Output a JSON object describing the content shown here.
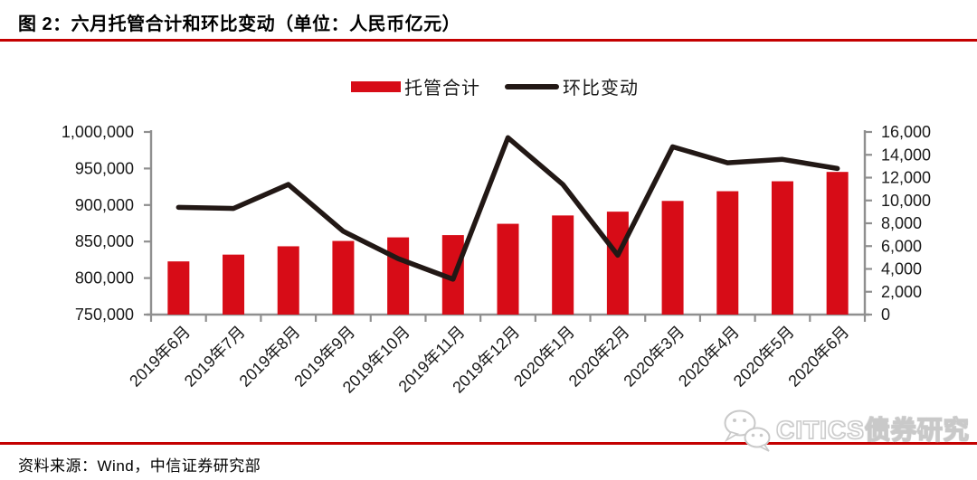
{
  "header": {
    "title": "图 2：六月托管合计和环比变动（单位：人民币亿元）"
  },
  "colors": {
    "bar_red": "#d70c17",
    "line_black": "#221815",
    "rule_red": "#c40000",
    "axis_gray": "#8f8f8f",
    "label_black": "#1a1a1a"
  },
  "chart_data": {
    "type": "bar+line combo",
    "title": "六月托管合计和环比变动",
    "unit": "人民币亿元",
    "grid": false,
    "legend_position": "top-center",
    "categories": [
      "2019年6月",
      "2019年7月",
      "2019年8月",
      "2019年9月",
      "2019年10月",
      "2019年11月",
      "2019年12月",
      "2020年1月",
      "2020年2月",
      "2020年3月",
      "2020年4月",
      "2020年5月",
      "2020年6月"
    ],
    "series": [
      {
        "name": "托管合计",
        "type": "bar",
        "axis": "left",
        "color": "#d70c17",
        "values": [
          822800,
          832100,
          843500,
          850800,
          855700,
          858800,
          874300,
          885700,
          890900,
          905600,
          918900,
          932500,
          945300
        ]
      },
      {
        "name": "环比变动",
        "type": "line",
        "axis": "right",
        "color": "#221815",
        "values": [
          9400,
          9300,
          11400,
          7300,
          4900,
          3100,
          15500,
          11400,
          5200,
          14700,
          13300,
          13600,
          12800
        ]
      }
    ],
    "left_axis": {
      "min": 750000,
      "max": 1000000,
      "tick_values": [
        1000000,
        950000,
        900000,
        850000,
        800000,
        750000
      ],
      "tick_labels": [
        "1,000,000",
        "950,000",
        "900,000",
        "850,000",
        "800,000",
        "750,000"
      ]
    },
    "right_axis": {
      "min": 0,
      "max": 16000,
      "tick_values": [
        16000,
        14000,
        12000,
        10000,
        8000,
        6000,
        4000,
        2000,
        0
      ],
      "tick_labels": [
        "16,000",
        "14,000",
        "12,000",
        "10,000",
        "8,000",
        "6,000",
        "4,000",
        "2,000",
        "0"
      ]
    }
  },
  "watermark": {
    "text": "CITICS债券研究",
    "icon": "wechat-icon"
  },
  "footer": {
    "source": "资料来源：Wind，中信证券研究部"
  }
}
